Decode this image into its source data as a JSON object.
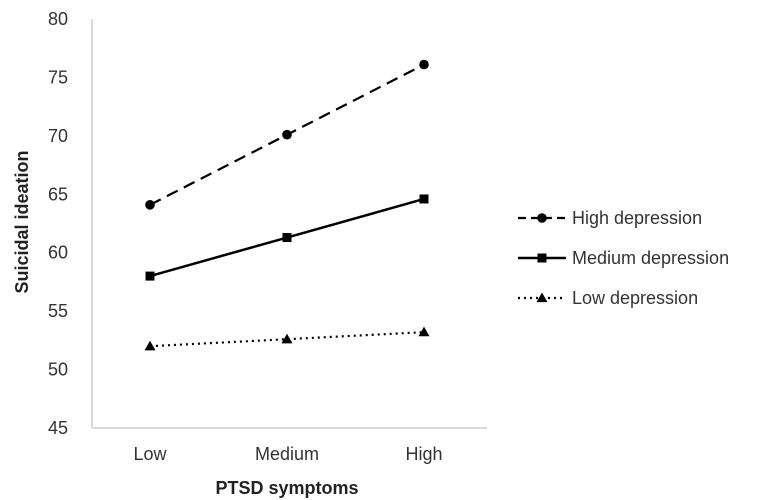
{
  "chart_data": {
    "type": "line",
    "xlabel": "PTSD symptoms",
    "ylabel": "Suicidal ideation",
    "categories": [
      "Low",
      "Medium",
      "High"
    ],
    "ylim": [
      45,
      80
    ],
    "yticks": [
      45,
      50,
      55,
      60,
      65,
      70,
      75,
      80
    ],
    "grid": false,
    "legend_position": "right",
    "series": [
      {
        "name": "High depression",
        "values": [
          64.1,
          70.1,
          76.1
        ],
        "line_style": "dashed",
        "marker": "circle",
        "color": "#000000"
      },
      {
        "name": "Medium depression",
        "values": [
          58.0,
          61.3,
          64.6
        ],
        "line_style": "solid",
        "marker": "square",
        "color": "#000000"
      },
      {
        "name": "Low depression",
        "values": [
          52.0,
          52.6,
          53.2
        ],
        "line_style": "dotted",
        "marker": "triangle",
        "color": "#000000"
      }
    ]
  }
}
